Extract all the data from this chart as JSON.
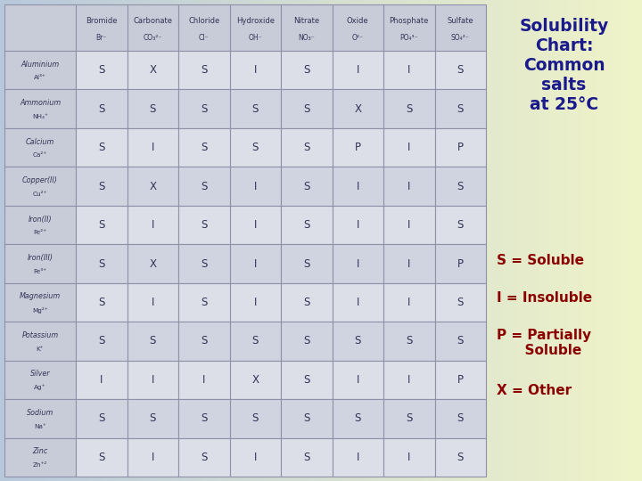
{
  "col_headers": [
    [
      "Bromide",
      "Br⁻"
    ],
    [
      "Carbonate",
      "CO₃²⁻"
    ],
    [
      "Chloride",
      "Cl⁻"
    ],
    [
      "Hydroxide",
      "OH⁻"
    ],
    [
      "Nitrate",
      "NO₃⁻"
    ],
    [
      "Oxide",
      "O²⁻"
    ],
    [
      "Phosphate",
      "PO₄³⁻"
    ],
    [
      "Sulfate",
      "SO₄²⁻"
    ]
  ],
  "row_headers": [
    [
      "Aluminium",
      "Al³⁺"
    ],
    [
      "Ammonium",
      "NH₄⁺"
    ],
    [
      "Calcium",
      "Ca²⁺"
    ],
    [
      "Copper(II)",
      "Cu²⁺"
    ],
    [
      "Iron(II)",
      "Fe²⁺"
    ],
    [
      "Iron(III)",
      "Fe³⁺"
    ],
    [
      "Magnesium",
      "Mg²⁺"
    ],
    [
      "Potassium",
      "K⁺"
    ],
    [
      "Silver",
      "Ag⁺"
    ],
    [
      "Sodium",
      "Na⁺"
    ],
    [
      "Zinc",
      "Zn⁺²"
    ]
  ],
  "table_data": [
    [
      "S",
      "X",
      "S",
      "I",
      "S",
      "I",
      "I",
      "S"
    ],
    [
      "S",
      "S",
      "S",
      "S",
      "S",
      "X",
      "S",
      "S"
    ],
    [
      "S",
      "I",
      "S",
      "S",
      "S",
      "P",
      "I",
      "P"
    ],
    [
      "S",
      "X",
      "S",
      "I",
      "S",
      "I",
      "I",
      "S"
    ],
    [
      "S",
      "I",
      "S",
      "I",
      "S",
      "I",
      "I",
      "S"
    ],
    [
      "S",
      "X",
      "S",
      "I",
      "S",
      "I",
      "I",
      "P"
    ],
    [
      "S",
      "I",
      "S",
      "I",
      "S",
      "I",
      "I",
      "S"
    ],
    [
      "S",
      "S",
      "S",
      "S",
      "S",
      "S",
      "S",
      "S"
    ],
    [
      "I",
      "I",
      "I",
      "X",
      "S",
      "I",
      "I",
      "P"
    ],
    [
      "S",
      "S",
      "S",
      "S",
      "S",
      "S",
      "S",
      "S"
    ],
    [
      "S",
      "I",
      "S",
      "I",
      "S",
      "I",
      "I",
      "S"
    ]
  ],
  "title_text": "Solubility\nChart:\nCommon\nsalts\nat 25°C",
  "title_color": "#1a1a8c",
  "legend_lines": [
    "S = Soluble",
    "I = Insoluble",
    "P = Partially\n      Soluble",
    "X = Other"
  ],
  "legend_color": "#8b0000",
  "header_bg": "#c8ccd8",
  "cell_bg_even": "#dcdfe8",
  "cell_bg_odd": "#d0d4e0",
  "grid_color": "#9090a8",
  "cell_text_color": "#333355",
  "bg_color_left": "#b8c8dc",
  "bg_color_right": "#f0f4c8"
}
